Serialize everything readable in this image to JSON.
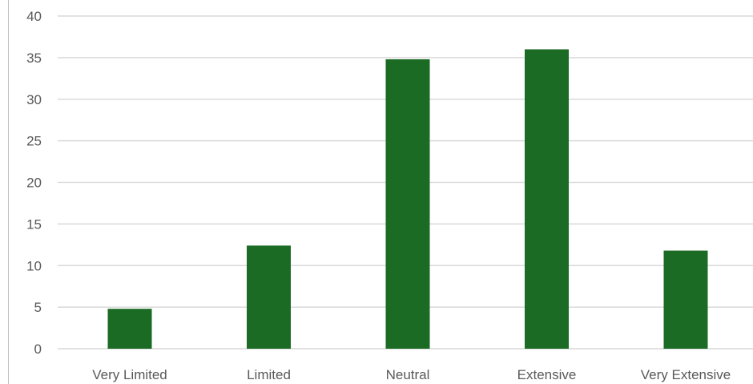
{
  "chart_data": {
    "type": "bar",
    "title": "",
    "xlabel": "",
    "ylabel": "",
    "categories": [
      "Very Limited",
      "Limited",
      "Neutral",
      "Extensive",
      "Very Extensive"
    ],
    "values": [
      4.8,
      12.4,
      34.8,
      36.0,
      11.8
    ],
    "ylim": [
      0,
      40
    ],
    "yticks": [
      "0",
      "5",
      "10",
      "15",
      "20",
      "25",
      "30",
      "35",
      "40"
    ],
    "grid": true,
    "legend": "none",
    "colors": {
      "bar": "#1b6b24",
      "grid": "#d9d9d9",
      "text": "#595959"
    }
  }
}
